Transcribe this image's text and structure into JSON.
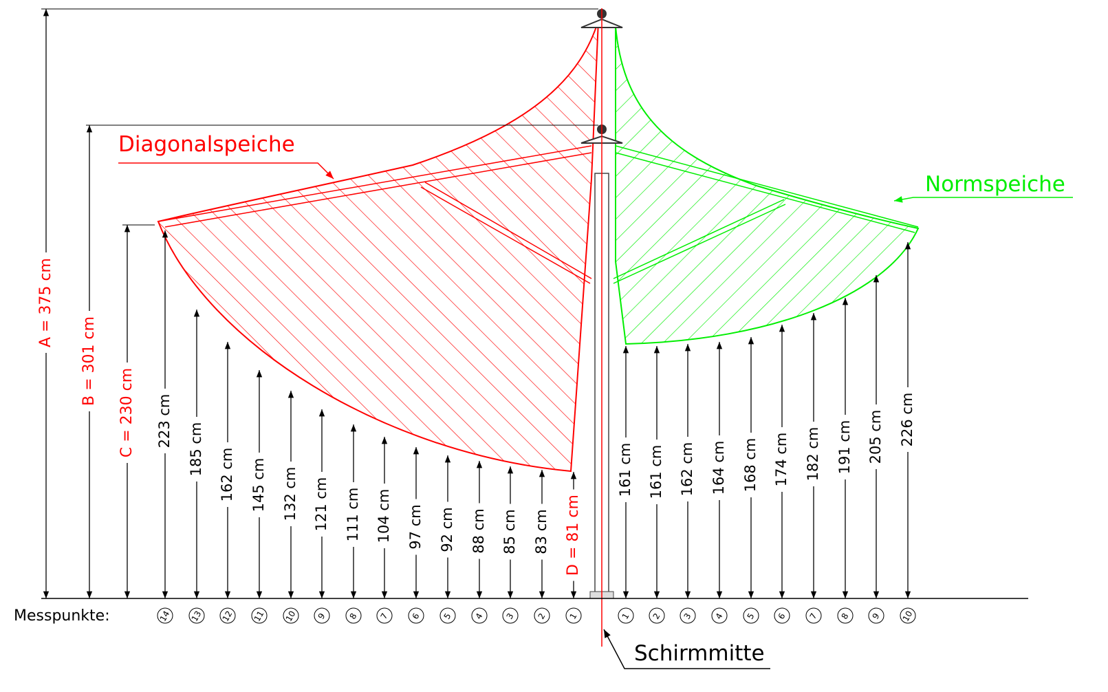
{
  "labels": {
    "diagonal": "Diagonalspeiche",
    "norm": "Normspeiche",
    "center": "Schirmmitte",
    "points_title": "Messpunkte:"
  },
  "dimensions": {
    "A": "A = 375 cm",
    "B": "B = 301 cm",
    "C": "C = 230 cm",
    "D": "D = 81 cm"
  },
  "left": [
    {
      "point": "14",
      "height": "223 cm"
    },
    {
      "point": "13",
      "height": "185 cm"
    },
    {
      "point": "12",
      "height": "162 cm"
    },
    {
      "point": "11",
      "height": "145 cm"
    },
    {
      "point": "10",
      "height": "132 cm"
    },
    {
      "point": "9",
      "height": "121 cm"
    },
    {
      "point": "8",
      "height": "111 cm"
    },
    {
      "point": "7",
      "height": "104 cm"
    },
    {
      "point": "6",
      "height": "97 cm"
    },
    {
      "point": "5",
      "height": "92 cm"
    },
    {
      "point": "4",
      "height": "88 cm"
    },
    {
      "point": "3",
      "height": "85 cm"
    },
    {
      "point": "2",
      "height": "83 cm"
    },
    {
      "point": "1",
      "height": ""
    }
  ],
  "right": [
    {
      "point": "1",
      "height": "161 cm"
    },
    {
      "point": "2",
      "height": "161 cm"
    },
    {
      "point": "3",
      "height": "162 cm"
    },
    {
      "point": "4",
      "height": "164 cm"
    },
    {
      "point": "5",
      "height": "168 cm"
    },
    {
      "point": "6",
      "height": "174 cm"
    },
    {
      "point": "7",
      "height": "182 cm"
    },
    {
      "point": "8",
      "height": "191 cm"
    },
    {
      "point": "9",
      "height": "205 cm"
    },
    {
      "point": "10",
      "height": "226 cm"
    }
  ]
}
